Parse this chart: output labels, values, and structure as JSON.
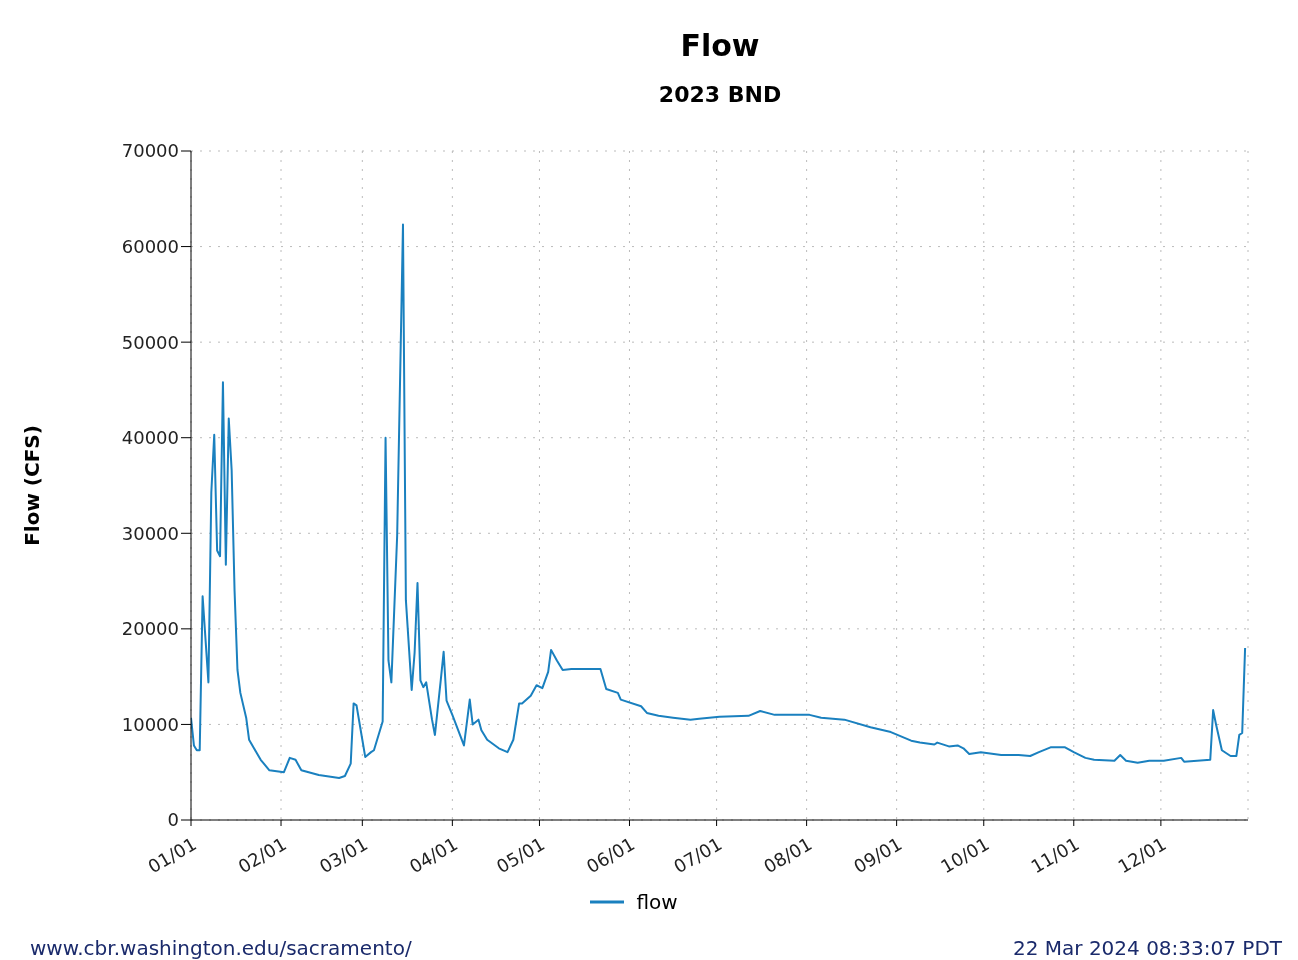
{
  "chart_data": {
    "type": "line",
    "title": "Flow",
    "subtitle": "2023 BND",
    "ylabel": "Flow (CFS)",
    "annotations": [
      "www.cbr.washington.edu/sacramento/",
      "22 Mar 2024 08:33:07 PDT"
    ],
    "x": [
      "2023-01-01",
      "2023-01-02",
      "2023-01-03",
      "2023-01-04",
      "2023-01-05",
      "2023-01-07",
      "2023-01-08",
      "2023-01-09",
      "2023-01-10",
      "2023-01-11",
      "2023-01-12",
      "2023-01-13",
      "2023-01-14",
      "2023-01-15",
      "2023-01-16",
      "2023-01-17",
      "2023-01-18",
      "2023-01-20",
      "2023-01-21",
      "2023-01-25",
      "2023-01-28",
      "2023-02-02",
      "2023-02-04",
      "2023-02-06",
      "2023-02-08",
      "2023-02-14",
      "2023-02-21",
      "2023-02-23",
      "2023-02-25",
      "2023-02-26",
      "2023-02-27",
      "2023-03-01",
      "2023-03-02",
      "2023-03-04",
      "2023-03-05",
      "2023-03-08",
      "2023-03-09",
      "2023-03-10",
      "2023-03-11",
      "2023-03-13",
      "2023-03-15",
      "2023-03-16",
      "2023-03-18",
      "2023-03-19",
      "2023-03-20",
      "2023-03-21",
      "2023-03-22",
      "2023-03-23",
      "2023-03-25",
      "2023-03-26",
      "2023-03-28",
      "2023-03-29",
      "2023-03-30",
      "2023-04-01",
      "2023-04-03",
      "2023-04-05",
      "2023-04-07",
      "2023-04-08",
      "2023-04-10",
      "2023-04-11",
      "2023-04-13",
      "2023-04-17",
      "2023-04-20",
      "2023-04-22",
      "2023-04-24",
      "2023-04-25",
      "2023-04-28",
      "2023-04-30",
      "2023-05-02",
      "2023-05-04",
      "2023-05-05",
      "2023-05-07",
      "2023-05-09",
      "2023-05-12",
      "2023-05-22",
      "2023-05-24",
      "2023-05-28",
      "2023-05-29",
      "2023-06-05",
      "2023-06-07",
      "2023-06-11",
      "2023-06-16",
      "2023-06-22",
      "2023-06-25",
      "2023-07-02",
      "2023-07-12",
      "2023-07-16",
      "2023-07-21",
      "2023-08-02",
      "2023-08-06",
      "2023-08-14",
      "2023-08-23",
      "2023-08-30",
      "2023-09-06",
      "2023-09-09",
      "2023-09-14",
      "2023-09-15",
      "2023-09-19",
      "2023-09-22",
      "2023-09-24",
      "2023-09-26",
      "2023-09-30",
      "2023-10-07",
      "2023-10-13",
      "2023-10-17",
      "2023-10-20",
      "2023-10-24",
      "2023-10-29",
      "2023-11-01",
      "2023-11-05",
      "2023-11-08",
      "2023-11-15",
      "2023-11-17",
      "2023-11-19",
      "2023-11-23",
      "2023-11-27",
      "2023-12-02",
      "2023-12-08",
      "2023-12-09",
      "2023-12-18",
      "2023-12-19",
      "2023-12-20",
      "2023-12-22",
      "2023-12-25",
      "2023-12-27",
      "2023-12-28",
      "2023-12-29",
      "2023-12-30"
    ],
    "series": [
      {
        "name": "flow",
        "color": "#1a80bf",
        "values": [
          10700,
          7800,
          7300,
          7300,
          23400,
          14400,
          34300,
          40300,
          28200,
          27600,
          45800,
          26700,
          42000,
          36600,
          24000,
          15700,
          13300,
          10700,
          8400,
          6300,
          5200,
          5000,
          6500,
          6300,
          5200,
          4700,
          4400,
          4600,
          5900,
          12200,
          12000,
          8400,
          6600,
          7100,
          7300,
          10300,
          40000,
          16700,
          14400,
          29800,
          62300,
          23000,
          13600,
          17500,
          24800,
          14600,
          13900,
          14400,
          10500,
          8900,
          14600,
          17600,
          12500,
          11000,
          9400,
          7800,
          12600,
          10000,
          10500,
          9400,
          8400,
          7500,
          7100,
          8400,
          12200,
          12200,
          13000,
          14100,
          13800,
          15500,
          17800,
          16700,
          15700,
          15800,
          15800,
          13700,
          13300,
          12600,
          11900,
          11200,
          10900,
          10700,
          10500,
          10600,
          10800,
          10900,
          11400,
          11000,
          11000,
          10700,
          10500,
          9700,
          9200,
          8300,
          8100,
          7900,
          8100,
          7700,
          7800,
          7500,
          6900,
          7100,
          6800,
          6800,
          6700,
          7100,
          7600,
          7600,
          7100,
          6500,
          6300,
          6200,
          6800,
          6200,
          6000,
          6200,
          6200,
          6500,
          6100,
          6300,
          11500,
          10000,
          7300,
          6700,
          6700,
          8900,
          9100,
          18000
        ]
      }
    ],
    "xlim": [
      "2023-01-01",
      "2023-12-31"
    ],
    "xticks": [
      {
        "value": "2023-01-01",
        "label": "01/01"
      },
      {
        "value": "2023-02-01",
        "label": "02/01"
      },
      {
        "value": "2023-03-01",
        "label": "03/01"
      },
      {
        "value": "2023-04-01",
        "label": "04/01"
      },
      {
        "value": "2023-05-01",
        "label": "05/01"
      },
      {
        "value": "2023-06-01",
        "label": "06/01"
      },
      {
        "value": "2023-07-01",
        "label": "07/01"
      },
      {
        "value": "2023-08-01",
        "label": "08/01"
      },
      {
        "value": "2023-09-01",
        "label": "09/01"
      },
      {
        "value": "2023-10-01",
        "label": "10/01"
      },
      {
        "value": "2023-11-01",
        "label": "11/01"
      },
      {
        "value": "2023-12-01",
        "label": "12/01"
      }
    ],
    "ylim": [
      0,
      70000
    ],
    "yticks": [
      0,
      10000,
      20000,
      30000,
      40000,
      50000,
      60000,
      70000
    ],
    "grid": true,
    "legend": "bottom",
    "marker": "none",
    "line_style": "solid"
  }
}
